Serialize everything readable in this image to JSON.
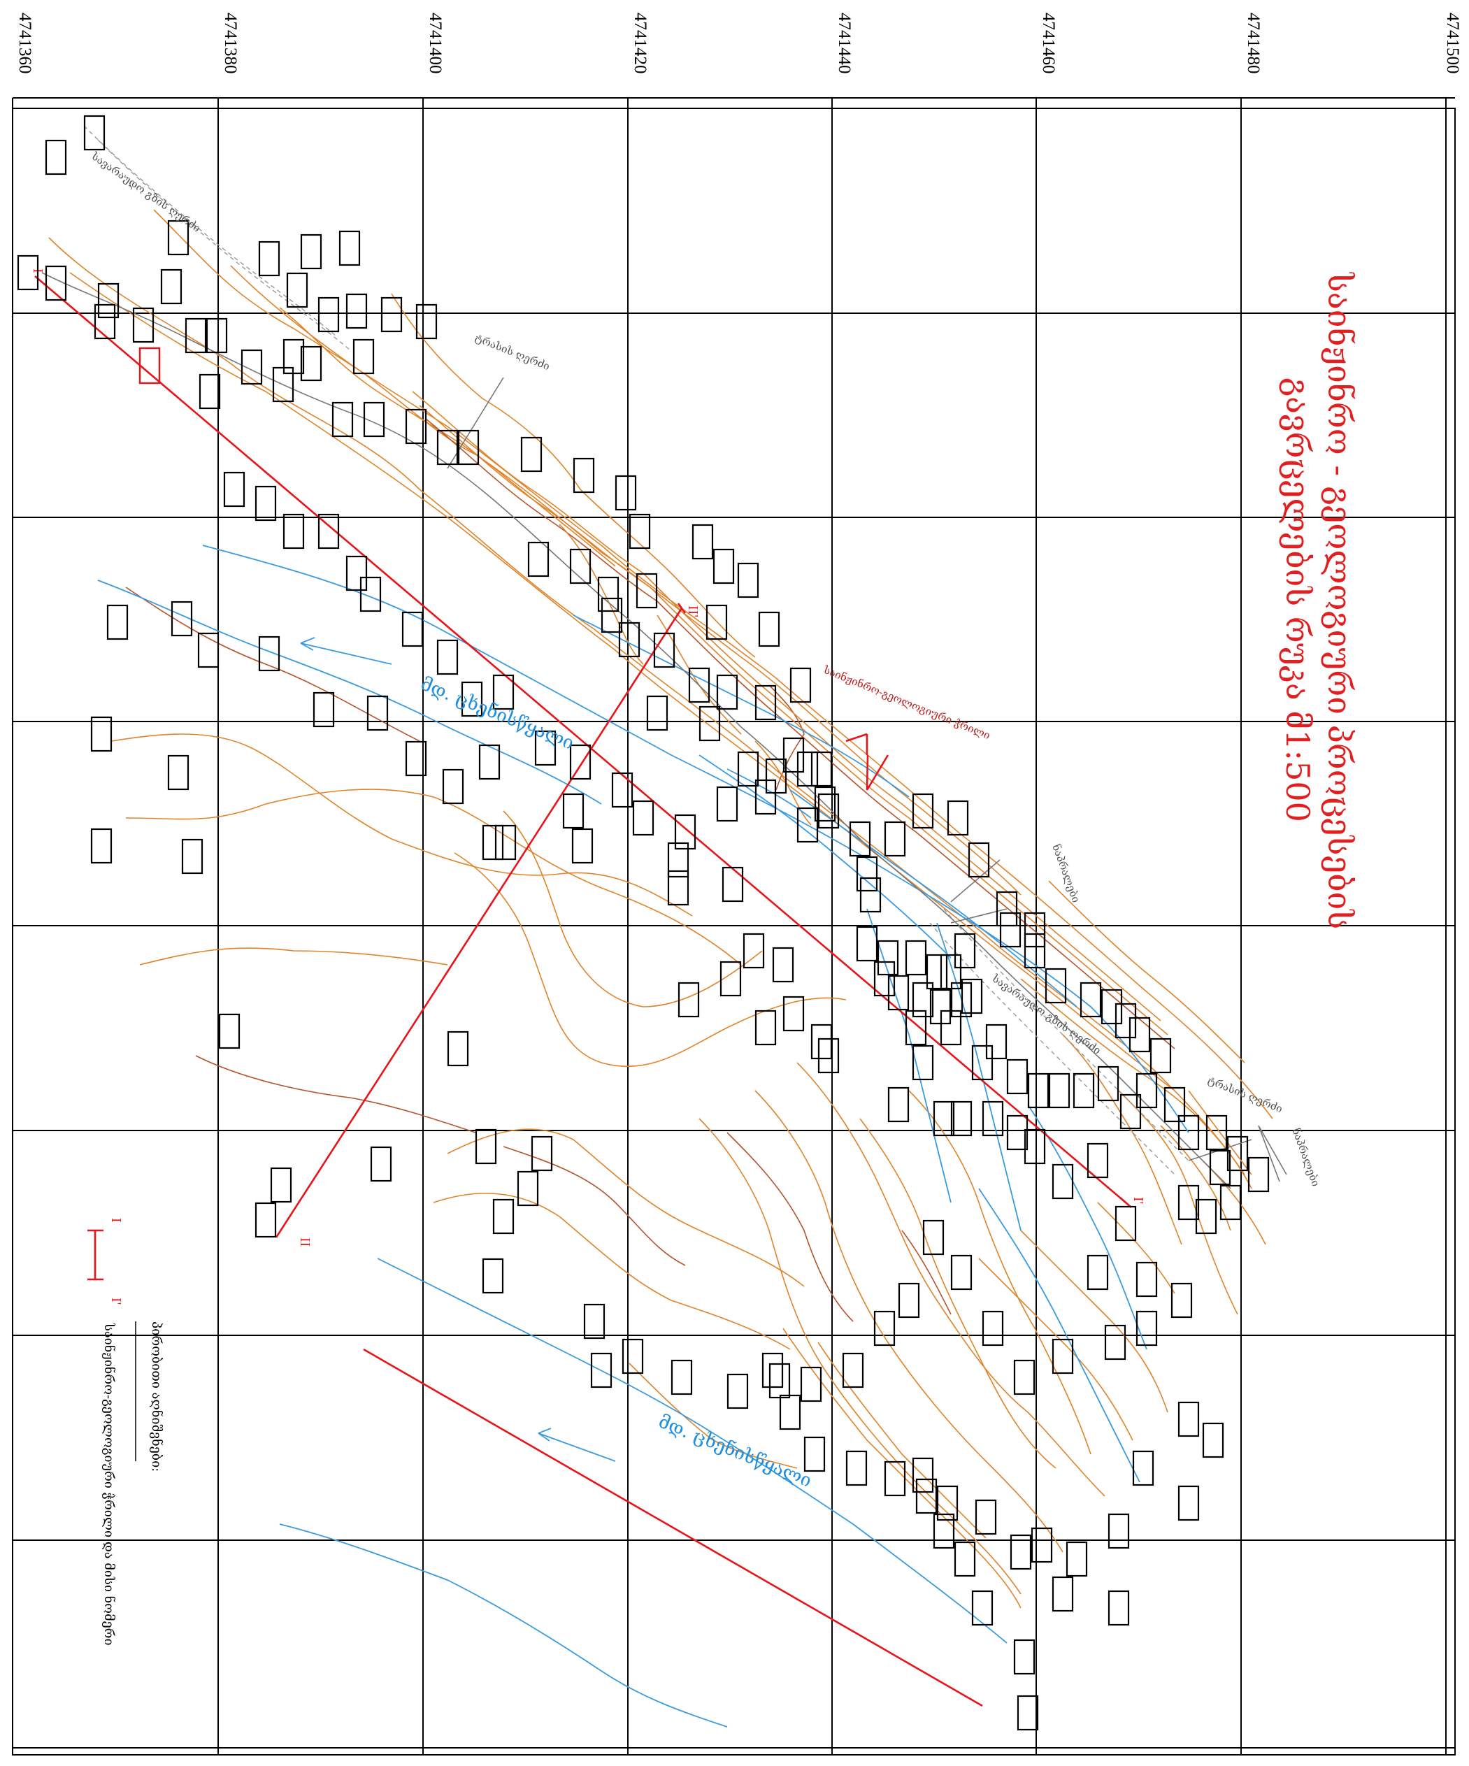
{
  "grid": {
    "tick_labels": [
      "4741360",
      "4741380",
      "4741400",
      "4741420",
      "4741440",
      "4741460",
      "4741480",
      "4741500"
    ]
  },
  "title": {
    "line1": "საინჟინრო - გეოლოგიური პროცესების",
    "line2": "გავრცელების რუკა   მ1:500"
  },
  "river_labels": [
    "მდ. ცხენისწყალი",
    "მდ. ცხენისწყალი"
  ],
  "map_labels": {
    "road_top": "ტრასის ღერძი",
    "road_right": "ტრასის ღერძი",
    "landslide": "საინჟინრო-გეოლოგიური ჭრილი",
    "terrace": "ნაპრალები",
    "terrace2": "ნაპრალები",
    "dashed_path_top": "სავარაუდო გზის ღერძი",
    "dashed_path_right": "სავარაუდო გზის ღერძი"
  },
  "section_marks": [
    "I",
    "I'",
    "II",
    "II'"
  ],
  "legend": {
    "heading": "პირობითი აღნიშვნები:",
    "marker_top": "I",
    "marker_bottom": "I'",
    "description": "საინჟინრო-გეოლოგიური ჭრილი და მისი ნომერი"
  },
  "colors": {
    "title": "#e02020",
    "river": "#3a9be0",
    "contour": "#e0842a",
    "section_line": "#e8141a",
    "grid": "#000000"
  },
  "icons": {
    "boreholes": "rectangle-marker",
    "section": "red-line"
  }
}
